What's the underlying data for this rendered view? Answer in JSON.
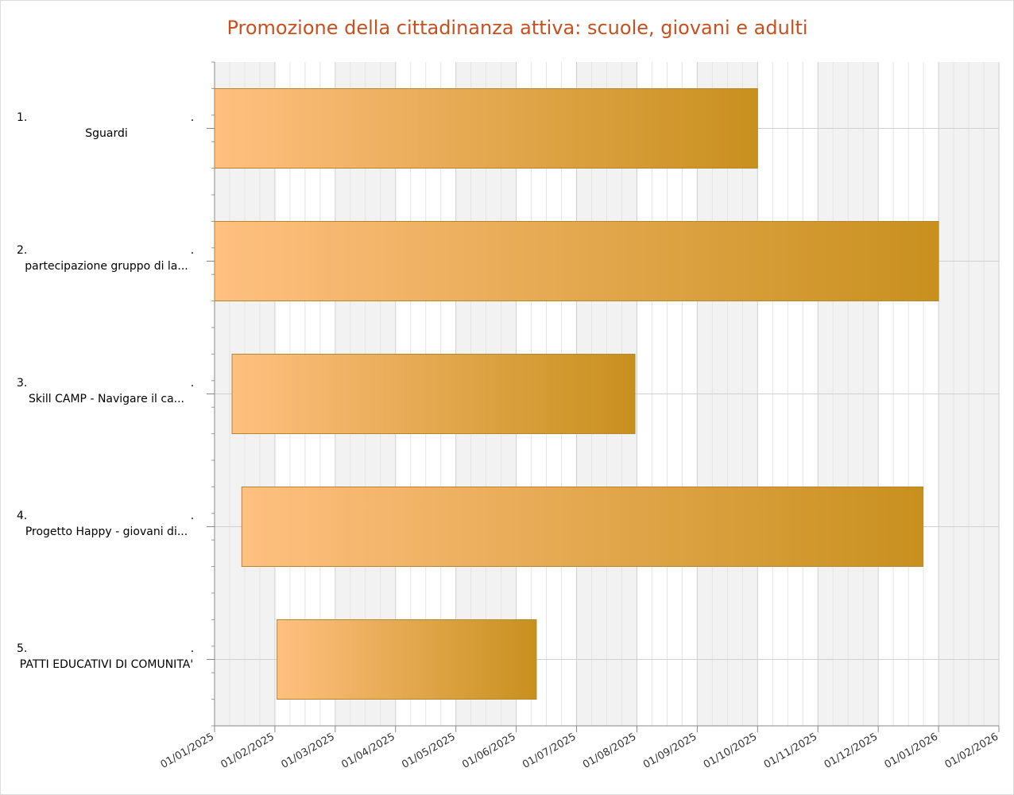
{
  "chart_data": {
    "type": "gantt",
    "title": "Promozione della cittadinanza attiva: scuole, giovani e adulti",
    "tasks": [
      {
        "number": "1.",
        "name": "Sguardi",
        "start": "01/01/2025",
        "end": "01/10/2025"
      },
      {
        "number": "2.",
        "name": "partecipazione gruppo di la...",
        "start": "01/01/2025",
        "end": "01/01/2026"
      },
      {
        "number": "3.",
        "name": "Skill CAMP - Navigare il ca...",
        "start": "10/01/2025",
        "end": "31/07/2025"
      },
      {
        "number": "4.",
        "name": "Progetto Happy - giovani di...",
        "start": "15/01/2025",
        "end": "24/12/2025"
      },
      {
        "number": "5.",
        "name": "PATTI EDUCATIVI DI COMUNITA'",
        "start": "02/02/2025",
        "end": "11/06/2025"
      }
    ],
    "xlim": [
      "01/01/2025",
      "01/02/2026"
    ],
    "xticks": [
      "01/01/2025",
      "01/02/2025",
      "01/03/2025",
      "01/04/2025",
      "01/05/2025",
      "01/06/2025",
      "01/07/2025",
      "01/08/2025",
      "01/09/2025",
      "01/10/2025",
      "01/11/2025",
      "01/12/2025",
      "01/01/2026",
      "01/02/2026"
    ],
    "bar_color_start": "#ffc080",
    "bar_color_end": "#c8901e",
    "grid": true
  }
}
